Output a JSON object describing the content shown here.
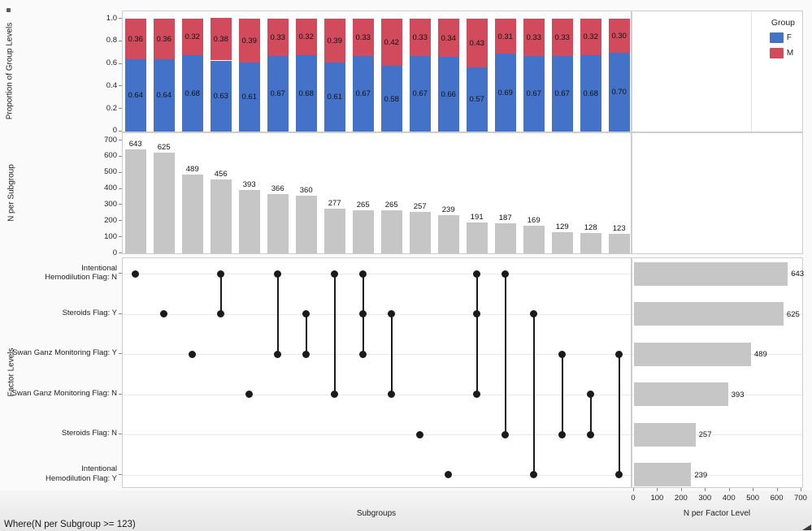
{
  "window": {
    "where_clause": "Where(N per Subgroup >= 123)"
  },
  "colors": {
    "f_blue": "#4472C9",
    "m_red": "#D14B5D",
    "bar_gray": "#C6C6C6",
    "panel_border": "#CDCDCD",
    "gridline": "#E8E8E8",
    "dot_black": "#1A1A1A"
  },
  "legend": {
    "title": "Group",
    "items": [
      {
        "label": "F",
        "color": "#4472C9"
      },
      {
        "label": "M",
        "color": "#D14B5D"
      }
    ]
  },
  "axis_titles": {
    "proportion": "Proportion of Group Levels",
    "n_subgroup": "N per Subgroup",
    "factor_levels": "Factor Levels",
    "subgroups": "Subgroups",
    "n_factor_level": "N per Factor Level"
  },
  "chart_data": [
    {
      "id": "proportion-of-group-levels",
      "type": "bar",
      "stacked": true,
      "ylabel": "Proportion of Group Levels",
      "ylim": [
        0,
        1.0
      ],
      "yticks": [
        "1.0",
        "0.8",
        "0.6",
        "0.4",
        "0.2",
        "0"
      ],
      "ytick_values": [
        1.0,
        0.8,
        0.6,
        0.4,
        0.2,
        0
      ],
      "legend_position": "top-right",
      "grid": false,
      "series": [
        {
          "name": "F",
          "color": "#4472C9",
          "values": [
            0.64,
            0.64,
            0.68,
            0.63,
            0.61,
            0.67,
            0.68,
            0.61,
            0.67,
            0.58,
            0.67,
            0.66,
            0.57,
            0.69,
            0.67,
            0.67,
            0.68,
            0.7
          ]
        },
        {
          "name": "M",
          "color": "#D14B5D",
          "values": [
            0.36,
            0.36,
            0.32,
            0.38,
            0.39,
            0.33,
            0.32,
            0.39,
            0.33,
            0.42,
            0.33,
            0.34,
            0.43,
            0.31,
            0.33,
            0.33,
            0.32,
            0.3
          ]
        }
      ]
    },
    {
      "id": "n-per-subgroup",
      "type": "bar",
      "ylabel": "N per Subgroup",
      "ylim": [
        0,
        700
      ],
      "yticks": [
        "700",
        "600",
        "500",
        "400",
        "300",
        "200",
        "100",
        "0"
      ],
      "ytick_values": [
        700,
        600,
        500,
        400,
        300,
        200,
        100,
        0
      ],
      "grid": false,
      "values": [
        643,
        625,
        489,
        456,
        393,
        366,
        360,
        277,
        265,
        265,
        257,
        239,
        191,
        187,
        169,
        129,
        128,
        123
      ]
    },
    {
      "id": "factor-levels-matrix",
      "type": "upset-matrix",
      "ylabel": "Factor Levels",
      "xlabel": "Subgroups",
      "rows": [
        {
          "label": "Intentional Hemodilution Flag: N",
          "lines": [
            "Intentional",
            "Hemodilution Flag: N"
          ]
        },
        {
          "label": "Steroids Flag: Y",
          "lines": [
            "Steroids Flag: Y"
          ]
        },
        {
          "label": "Swan Ganz Monitoring Flag: Y",
          "lines": [
            "Swan Ganz Monitoring Flag: Y"
          ]
        },
        {
          "label": "Swan Ganz Monitoring Flag: N",
          "lines": [
            "Swan Ganz Monitoring Flag: N"
          ]
        },
        {
          "label": "Steroids Flag: N",
          "lines": [
            "Steroids Flag: N"
          ]
        },
        {
          "label": "Intentional Hemodilution Flag: Y",
          "lines": [
            "Intentional",
            "Hemodilution Flag: Y"
          ]
        }
      ],
      "column_memberships": [
        [
          0
        ],
        [
          1
        ],
        [
          2
        ],
        [
          0,
          1
        ],
        [
          3
        ],
        [
          0,
          2
        ],
        [
          1,
          2
        ],
        [
          0,
          3
        ],
        [
          0,
          1,
          2
        ],
        [
          1,
          3
        ],
        [
          4
        ],
        [
          5
        ],
        [
          0,
          1,
          3
        ],
        [
          0,
          4
        ],
        [
          1,
          5
        ],
        [
          2,
          4
        ],
        [
          3,
          4
        ],
        [
          2,
          5
        ]
      ]
    },
    {
      "id": "n-per-factor-level",
      "type": "bar",
      "orientation": "horizontal",
      "xlabel": "N per Factor Level",
      "xlim": [
        0,
        700
      ],
      "xticks": [
        "0",
        "100",
        "200",
        "300",
        "400",
        "500",
        "600",
        "700"
      ],
      "xtick_values": [
        0,
        100,
        200,
        300,
        400,
        500,
        600,
        700
      ],
      "grid": true,
      "values": [
        643,
        625,
        489,
        393,
        257,
        239
      ]
    }
  ]
}
